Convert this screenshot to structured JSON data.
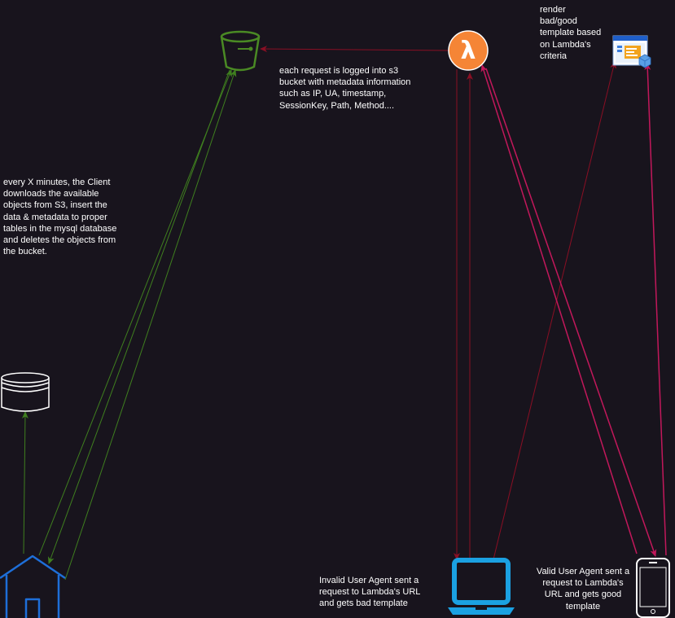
{
  "notes": {
    "lambda_log": [
      "each request is logged into s3",
      "bucket with metadata information",
      "such as IP, UA, timestamp,",
      "SessionKey, Path, Method...."
    ],
    "render": [
      "render",
      "bad/good",
      "template based",
      "on Lambda's",
      "criteria"
    ],
    "client": [
      "every X minutes, the Client",
      "downloads the available",
      "objects from S3, insert the",
      "data & metadata to proper",
      "tables in the mysql database",
      "and deletes the objects from",
      "the bucket."
    ],
    "invalid": [
      "Invalid User Agent sent a",
      "request to Lambda's URL",
      "and gets bad template"
    ],
    "valid": [
      "Valid User Agent sent a",
      "request to Lambda's",
      "URL and gets good",
      "template"
    ]
  },
  "icons": {
    "lambda_symbol": "λ"
  },
  "colors": {
    "background": "#18141d",
    "green_edge": "#3f7f1f",
    "red_edge": "#8a0f24",
    "pink_edge": "#c2185b",
    "lambda": "#f58536",
    "laptop": "#1ba1e2",
    "home": "#1e6fd9",
    "bucket": "#4a8a24"
  }
}
